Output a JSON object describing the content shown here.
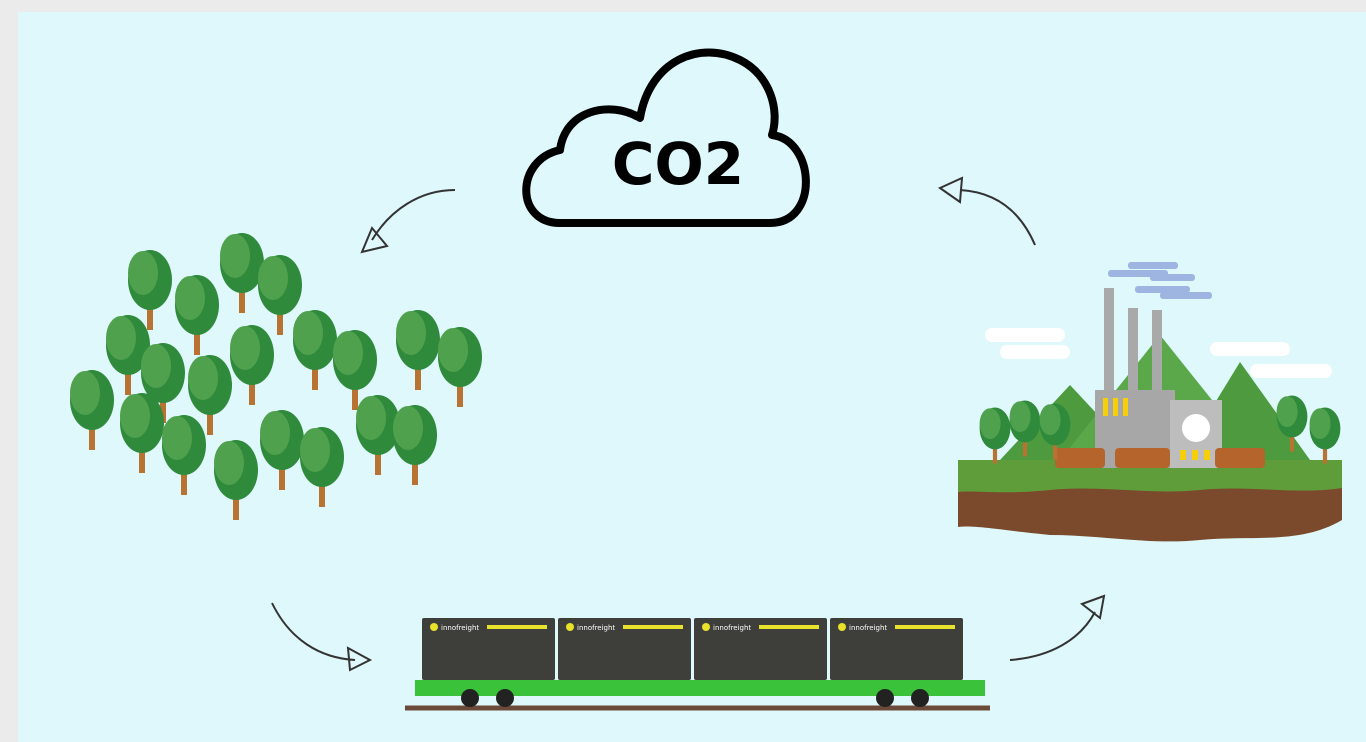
{
  "cloud": {
    "label": "CO2"
  },
  "train": {
    "brand": "innofreight"
  }
}
